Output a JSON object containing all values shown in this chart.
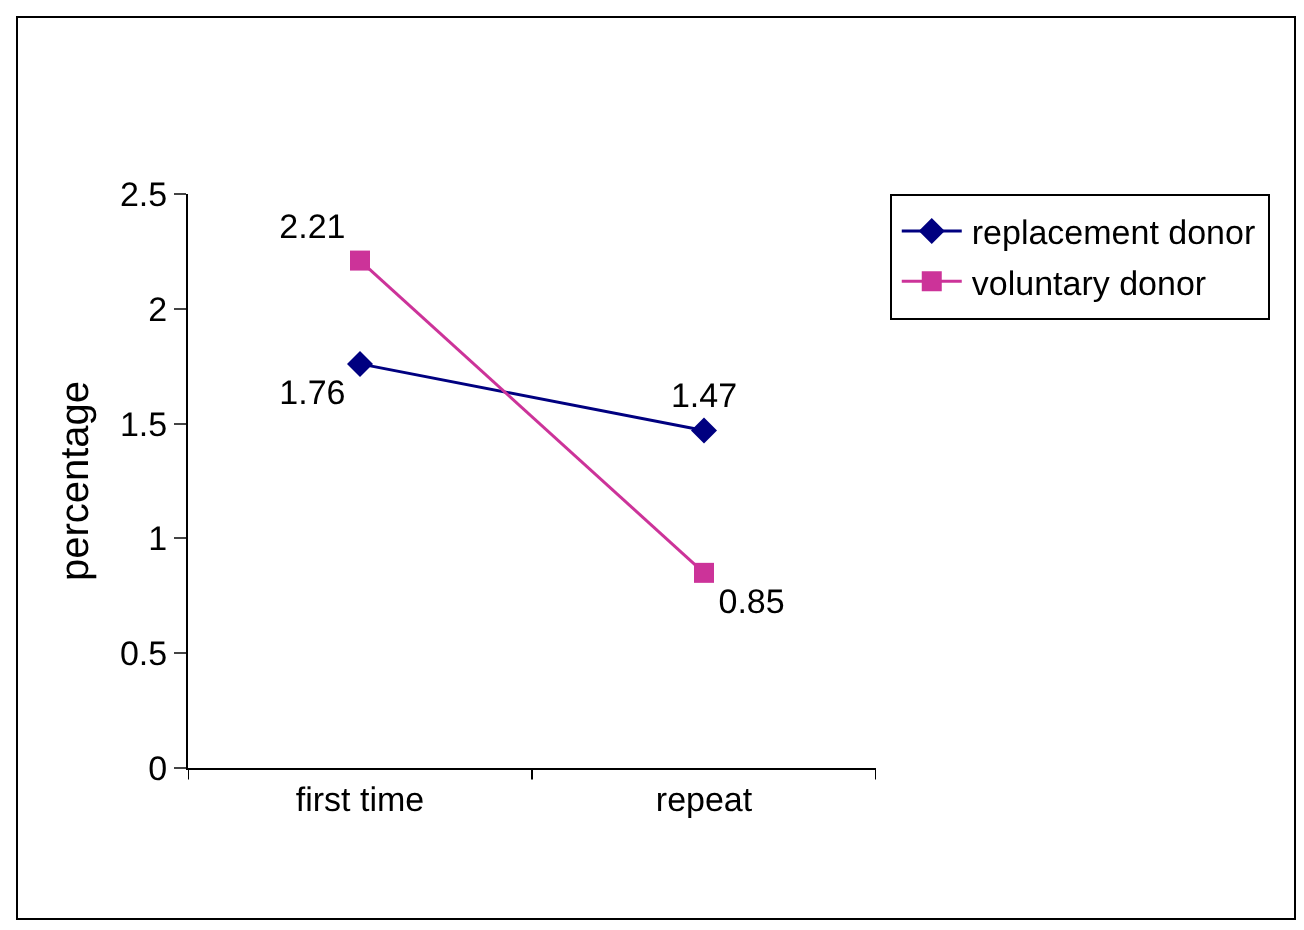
{
  "chart_data": {
    "type": "line",
    "ylabel": "percentage",
    "categories": [
      "first time",
      "repeat"
    ],
    "series": [
      {
        "name": "replacement donor",
        "color": "#000080",
        "marker": "diamond",
        "values": [
          1.76,
          1.47
        ]
      },
      {
        "name": "voluntary donor",
        "color": "#cc3399",
        "marker": "square",
        "values": [
          2.21,
          0.85
        ]
      }
    ],
    "ylim": [
      0,
      2.5
    ],
    "yticks": [
      0,
      0.5,
      1,
      1.5,
      2,
      2.5
    ],
    "grid": false,
    "legend": "top right",
    "data_labels": true
  }
}
